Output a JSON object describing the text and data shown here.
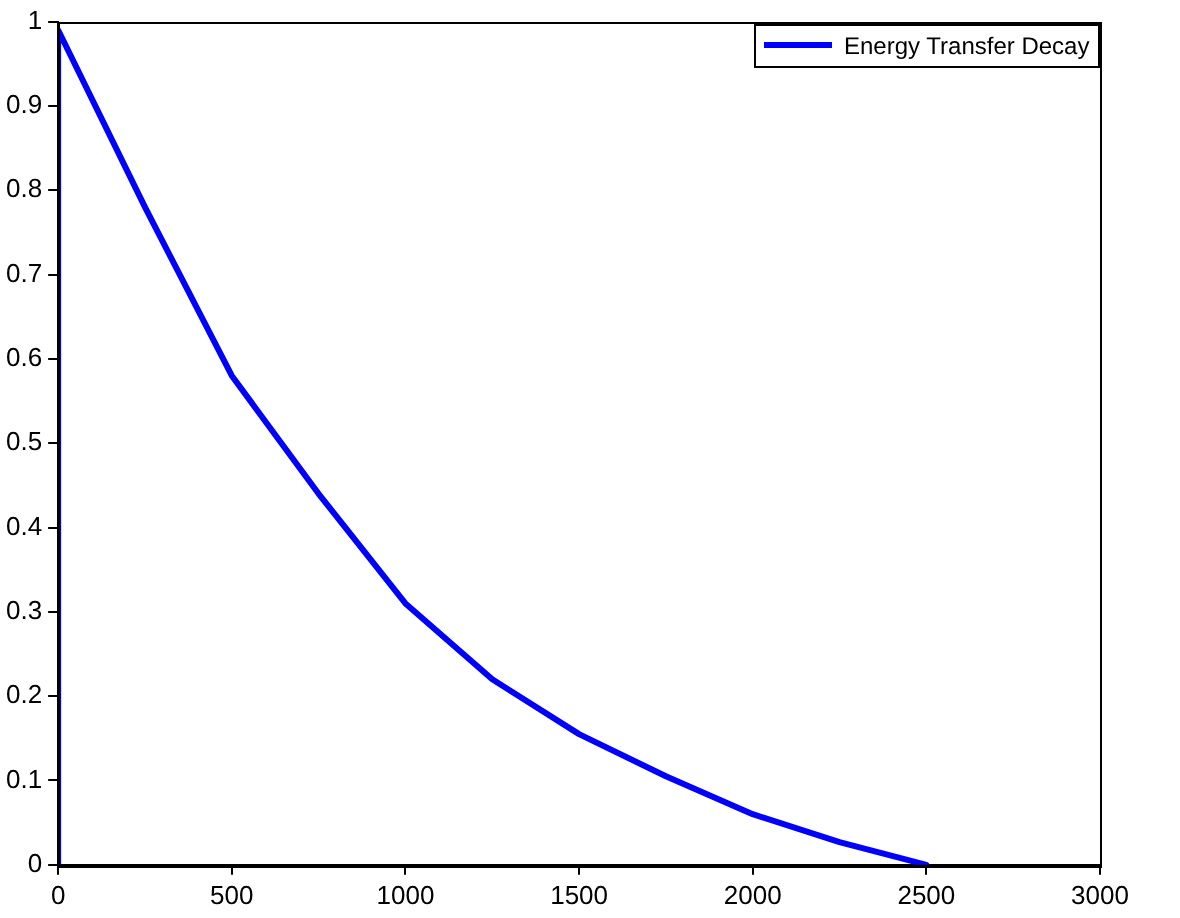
{
  "chart_data": {
    "type": "line",
    "x": [
      0,
      0,
      250,
      500,
      750,
      1000,
      1250,
      1500,
      1750,
      2000,
      2250,
      2500
    ],
    "series": [
      {
        "name": "Energy Transfer Decay",
        "color": "#0000ff",
        "values": [
          0,
          0.99,
          0.78,
          0.58,
          0.44,
          0.31,
          0.22,
          0.155,
          0.105,
          0.06,
          0.027,
          0
        ]
      }
    ],
    "xlim": [
      0,
      3000
    ],
    "xticks": [
      0,
      500,
      1000,
      1500,
      2000,
      2500,
      3000
    ],
    "ylim": [
      0,
      1
    ],
    "yticks": [
      0,
      0.1,
      0.2,
      0.3,
      0.4,
      0.5,
      0.6,
      0.7,
      0.8,
      0.9,
      1
    ],
    "grid": false,
    "legend": "top right",
    "marker": "none",
    "line_style": "solid"
  }
}
